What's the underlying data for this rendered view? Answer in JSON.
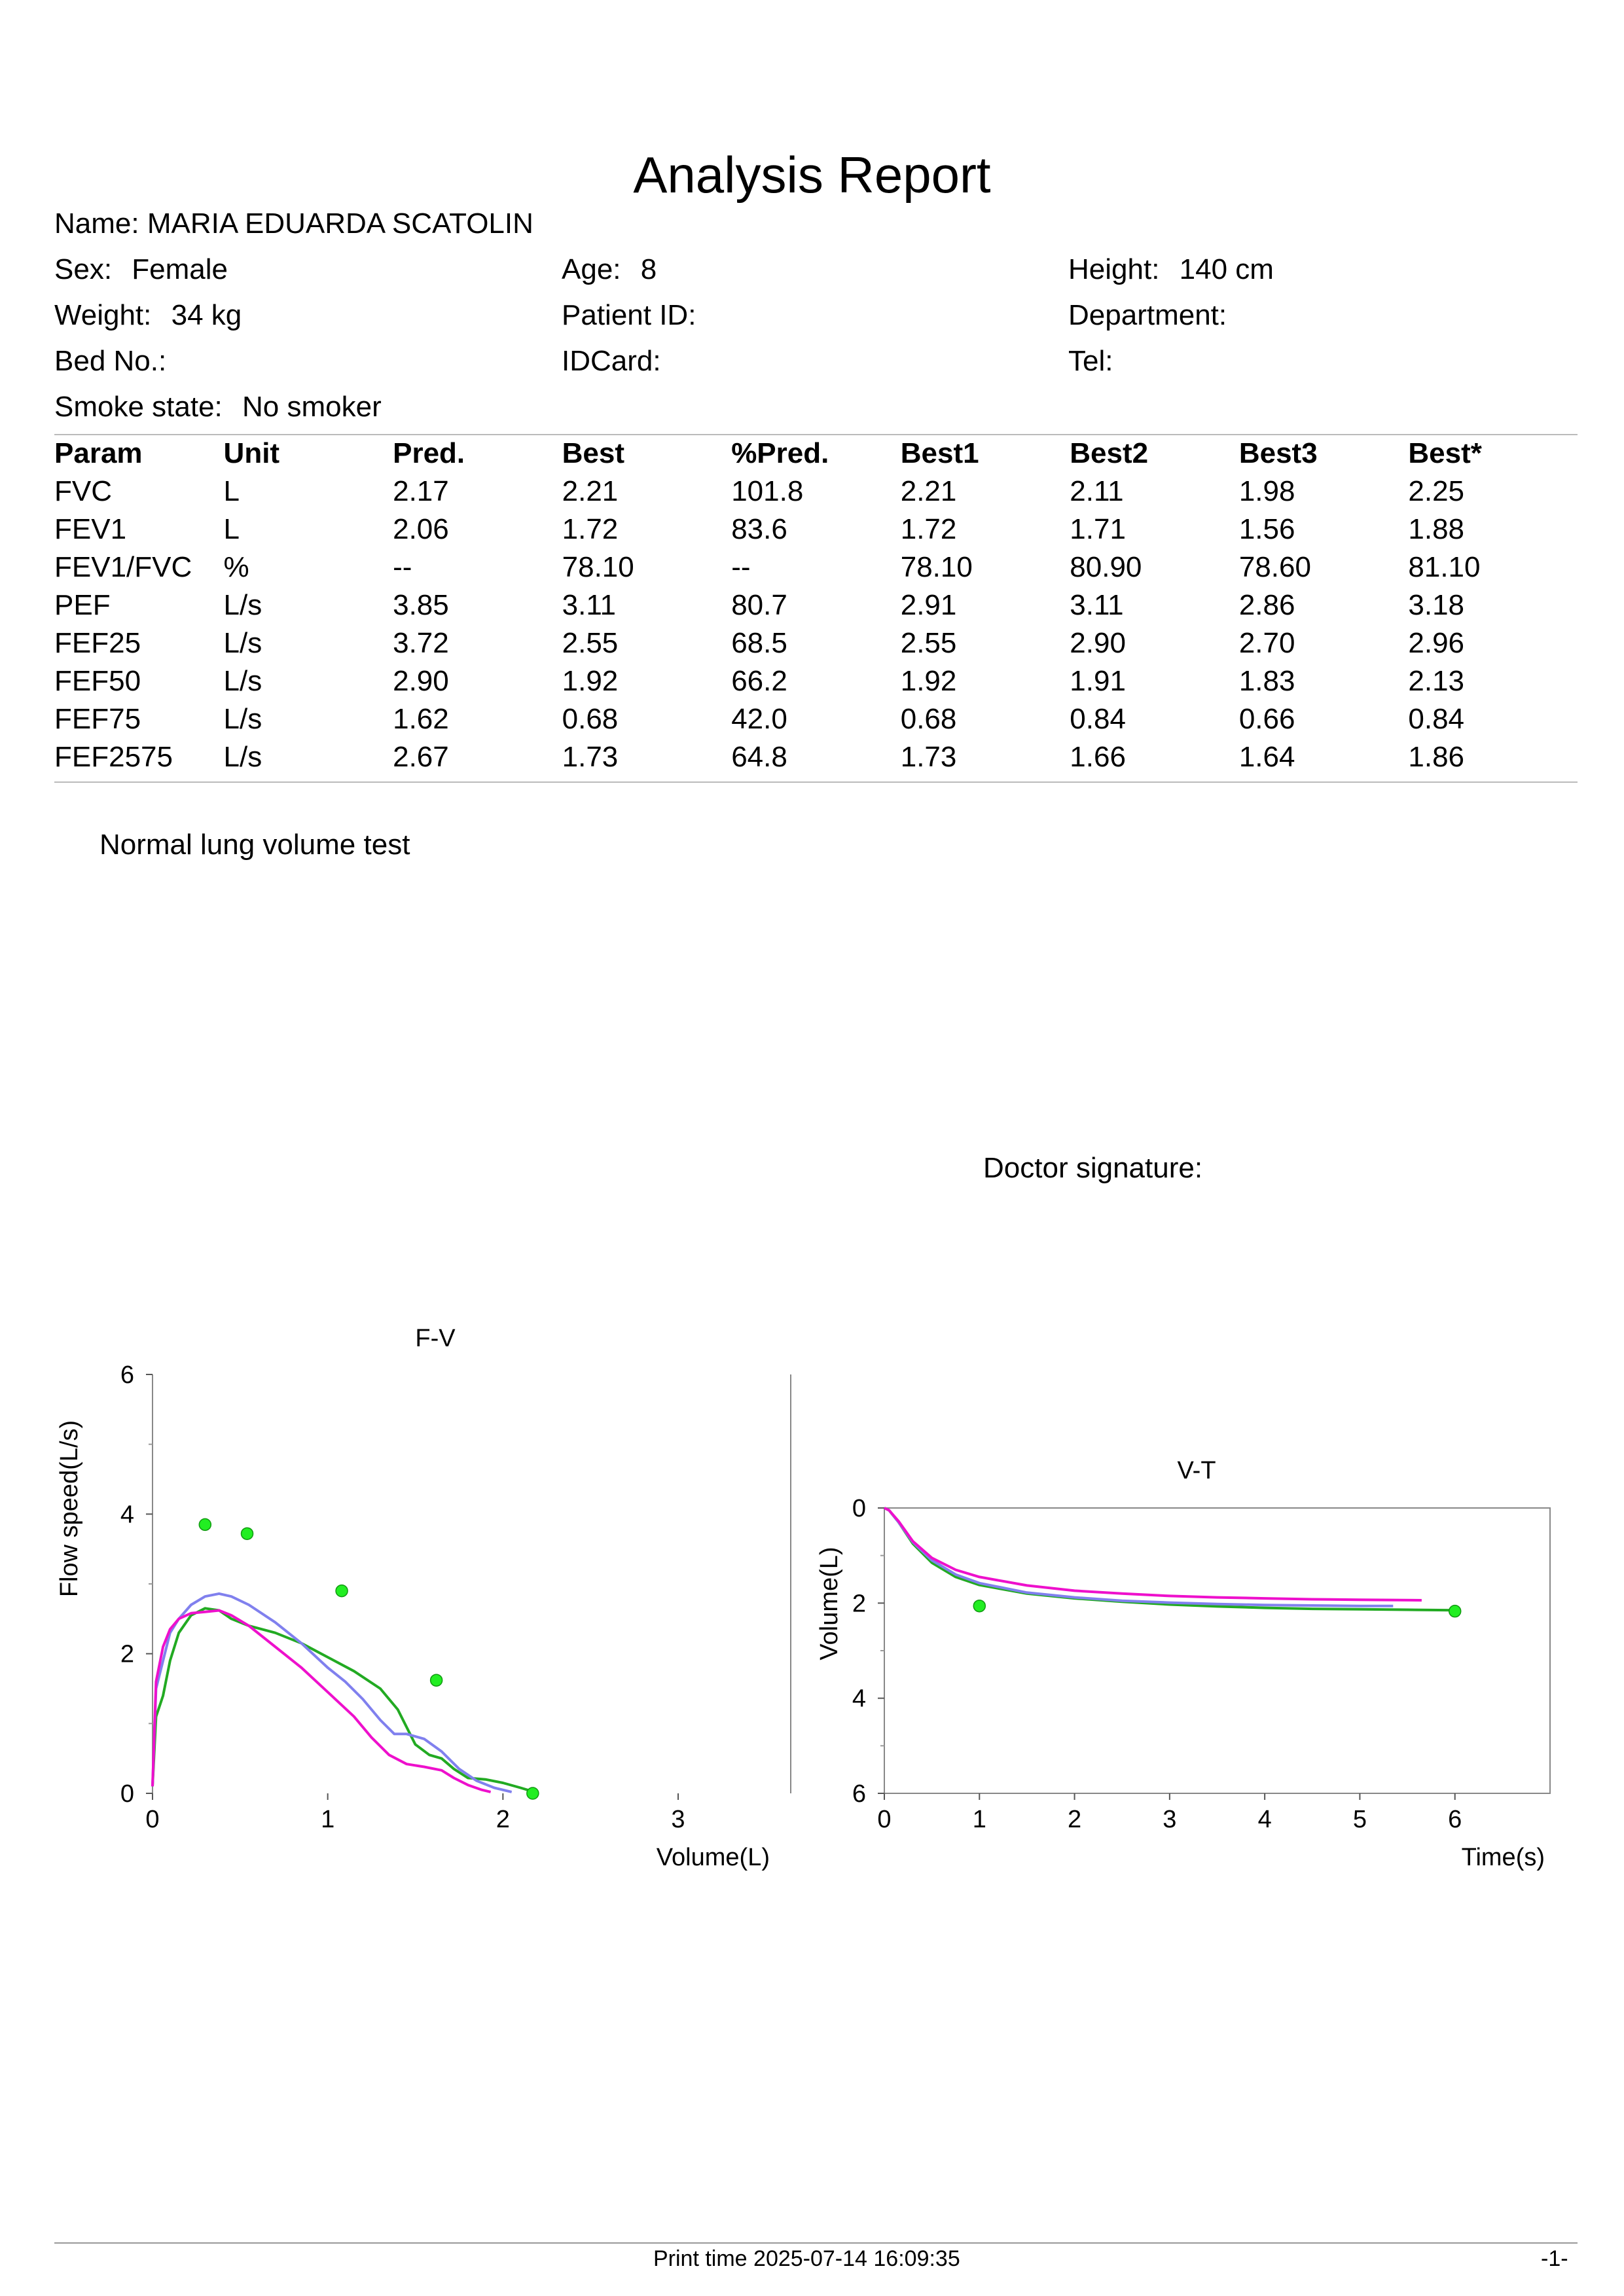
{
  "report": {
    "title": "Analysis Report",
    "name_label": "Name:",
    "name_value": "MARIA EDUARDA SCATOLIN",
    "sex_label": "Sex:",
    "sex_value": "Female",
    "age_label": "Age:",
    "age_value": "8",
    "height_label": "Height:",
    "height_value": "140 cm",
    "weight_label": "Weight:",
    "weight_value": "34 kg",
    "patient_id_label": "Patient ID:",
    "department_label": "Department:",
    "bed_label": "Bed No.:",
    "idcard_label": "IDCard:",
    "tel_label": "Tel:",
    "smoke_label": "Smoke state:",
    "smoke_value": "No smoker"
  },
  "table": {
    "headers": [
      "Param",
      "Unit",
      "Pred.",
      "Best",
      "%Pred.",
      "Best1",
      "Best2",
      "Best3",
      "Best*"
    ],
    "rows": [
      [
        "FVC",
        "L",
        "2.17",
        "2.21",
        "101.8",
        "2.21",
        "2.11",
        "1.98",
        "2.25"
      ],
      [
        "FEV1",
        "L",
        "2.06",
        "1.72",
        "83.6",
        "1.72",
        "1.71",
        "1.56",
        "1.88"
      ],
      [
        "FEV1/FVC",
        "%",
        "--",
        "78.10",
        "--",
        "78.10",
        "80.90",
        "78.60",
        "81.10"
      ],
      [
        "PEF",
        "L/s",
        "3.85",
        "3.11",
        "80.7",
        "2.91",
        "3.11",
        "2.86",
        "3.18"
      ],
      [
        "FEF25",
        "L/s",
        "3.72",
        "2.55",
        "68.5",
        "2.55",
        "2.90",
        "2.70",
        "2.96"
      ],
      [
        "FEF50",
        "L/s",
        "2.90",
        "1.92",
        "66.2",
        "1.92",
        "1.91",
        "1.83",
        "2.13"
      ],
      [
        "FEF75",
        "L/s",
        "1.62",
        "0.68",
        "42.0",
        "0.68",
        "0.84",
        "0.66",
        "0.84"
      ],
      [
        "FEF2575",
        "L/s",
        "2.67",
        "1.73",
        "64.8",
        "1.73",
        "1.66",
        "1.64",
        "1.86"
      ]
    ]
  },
  "conclusion": "Normal lung volume test",
  "doctor_signature_label": "Doctor signature:",
  "footer": {
    "print_time": "Print time 2025-07-14 16:09:35",
    "page": "-1-"
  },
  "colors": {
    "trial1": "#22aa22",
    "trial2": "#8080ee",
    "trial3": "#ee10cc",
    "predicted_point": "#22ee22",
    "axis": "#555555"
  },
  "chart_data": [
    {
      "type": "line",
      "title": "F-V",
      "xlabel": "Volume(L)",
      "ylabel": "Flow speed(L/s)",
      "xlim": [
        0,
        3
      ],
      "ylim": [
        0,
        6
      ],
      "xticks": [
        "0",
        "1",
        "2",
        "3"
      ],
      "yticks": [
        "0",
        "2",
        "4",
        "6"
      ],
      "grid": false,
      "series": [
        {
          "color": "#22aa22",
          "points": [
            [
              0,
              0.1
            ],
            [
              0.02,
              1.1
            ],
            [
              0.06,
              1.4
            ],
            [
              0.1,
              1.9
            ],
            [
              0.15,
              2.3
            ],
            [
              0.22,
              2.55
            ],
            [
              0.3,
              2.65
            ],
            [
              0.38,
              2.62
            ],
            [
              0.45,
              2.5
            ],
            [
              0.55,
              2.4
            ],
            [
              0.7,
              2.3
            ],
            [
              0.85,
              2.15
            ],
            [
              1.0,
              1.95
            ],
            [
              1.15,
              1.75
            ],
            [
              1.3,
              1.5
            ],
            [
              1.4,
              1.2
            ],
            [
              1.5,
              0.7
            ],
            [
              1.58,
              0.55
            ],
            [
              1.65,
              0.5
            ],
            [
              1.72,
              0.35
            ],
            [
              1.8,
              0.22
            ],
            [
              1.9,
              0.2
            ],
            [
              2.0,
              0.15
            ],
            [
              2.1,
              0.08
            ],
            [
              2.18,
              0.02
            ]
          ]
        },
        {
          "color": "#8080ee",
          "points": [
            [
              0,
              0.1
            ],
            [
              0.02,
              1.5
            ],
            [
              0.06,
              1.9
            ],
            [
              0.1,
              2.3
            ],
            [
              0.15,
              2.5
            ],
            [
              0.22,
              2.7
            ],
            [
              0.3,
              2.82
            ],
            [
              0.38,
              2.86
            ],
            [
              0.45,
              2.82
            ],
            [
              0.55,
              2.7
            ],
            [
              0.7,
              2.45
            ],
            [
              0.85,
              2.15
            ],
            [
              1.0,
              1.8
            ],
            [
              1.1,
              1.6
            ],
            [
              1.2,
              1.35
            ],
            [
              1.3,
              1.05
            ],
            [
              1.38,
              0.85
            ],
            [
              1.45,
              0.85
            ],
            [
              1.55,
              0.78
            ],
            [
              1.65,
              0.6
            ],
            [
              1.75,
              0.35
            ],
            [
              1.85,
              0.18
            ],
            [
              1.95,
              0.08
            ],
            [
              2.05,
              0.02
            ]
          ]
        },
        {
          "color": "#ee10cc",
          "points": [
            [
              0,
              0.1
            ],
            [
              0.02,
              1.6
            ],
            [
              0.06,
              2.1
            ],
            [
              0.1,
              2.35
            ],
            [
              0.15,
              2.5
            ],
            [
              0.22,
              2.58
            ],
            [
              0.3,
              2.6
            ],
            [
              0.38,
              2.62
            ],
            [
              0.45,
              2.55
            ],
            [
              0.55,
              2.4
            ],
            [
              0.7,
              2.1
            ],
            [
              0.85,
              1.8
            ],
            [
              1.0,
              1.45
            ],
            [
              1.15,
              1.1
            ],
            [
              1.25,
              0.8
            ],
            [
              1.35,
              0.55
            ],
            [
              1.45,
              0.42
            ],
            [
              1.55,
              0.38
            ],
            [
              1.65,
              0.33
            ],
            [
              1.72,
              0.22
            ],
            [
              1.8,
              0.12
            ],
            [
              1.88,
              0.05
            ],
            [
              1.93,
              0.02
            ]
          ]
        }
      ],
      "predicted_points": [
        [
          0.3,
          3.85
        ],
        [
          0.54,
          3.72
        ],
        [
          1.08,
          2.9
        ],
        [
          1.62,
          1.62
        ],
        [
          2.17,
          0.0
        ]
      ]
    },
    {
      "type": "line",
      "title": "V-T",
      "xlabel": "Time(s)",
      "ylabel": "Volume(L)",
      "xlim": [
        0,
        7
      ],
      "ylim": [
        0,
        6
      ],
      "y_inverted": true,
      "xticks": [
        "0",
        "1",
        "2",
        "3",
        "4",
        "5",
        "6"
      ],
      "yticks": [
        "0",
        "2",
        "4",
        "6"
      ],
      "grid": false,
      "series": [
        {
          "color": "#22aa22",
          "points": [
            [
              0,
              0
            ],
            [
              0.05,
              0.05
            ],
            [
              0.15,
              0.3
            ],
            [
              0.3,
              0.75
            ],
            [
              0.5,
              1.15
            ],
            [
              0.75,
              1.45
            ],
            [
              1.0,
              1.62
            ],
            [
              1.5,
              1.8
            ],
            [
              2.0,
              1.9
            ],
            [
              2.5,
              1.97
            ],
            [
              3.0,
              2.03
            ],
            [
              3.5,
              2.07
            ],
            [
              4.0,
              2.1
            ],
            [
              4.5,
              2.12
            ],
            [
              5.0,
              2.13
            ],
            [
              5.5,
              2.14
            ],
            [
              6.0,
              2.15
            ]
          ]
        },
        {
          "color": "#8080ee",
          "points": [
            [
              0,
              0
            ],
            [
              0.05,
              0.05
            ],
            [
              0.15,
              0.3
            ],
            [
              0.3,
              0.72
            ],
            [
              0.5,
              1.1
            ],
            [
              0.75,
              1.4
            ],
            [
              1.0,
              1.58
            ],
            [
              1.5,
              1.78
            ],
            [
              2.0,
              1.88
            ],
            [
              2.5,
              1.95
            ],
            [
              3.0,
              1.99
            ],
            [
              3.5,
              2.02
            ],
            [
              4.0,
              2.04
            ],
            [
              4.5,
              2.05
            ],
            [
              5.0,
              2.06
            ],
            [
              5.35,
              2.06
            ]
          ]
        },
        {
          "color": "#ee10cc",
          "points": [
            [
              0,
              0
            ],
            [
              0.05,
              0.05
            ],
            [
              0.15,
              0.28
            ],
            [
              0.3,
              0.7
            ],
            [
              0.5,
              1.05
            ],
            [
              0.75,
              1.3
            ],
            [
              1.0,
              1.45
            ],
            [
              1.5,
              1.63
            ],
            [
              2.0,
              1.74
            ],
            [
              2.5,
              1.8
            ],
            [
              3.0,
              1.85
            ],
            [
              3.5,
              1.88
            ],
            [
              4.0,
              1.9
            ],
            [
              4.5,
              1.92
            ],
            [
              5.0,
              1.93
            ],
            [
              5.65,
              1.94
            ]
          ]
        }
      ],
      "predicted_points": [
        [
          1.0,
          2.06
        ],
        [
          6.0,
          2.17
        ]
      ]
    }
  ]
}
